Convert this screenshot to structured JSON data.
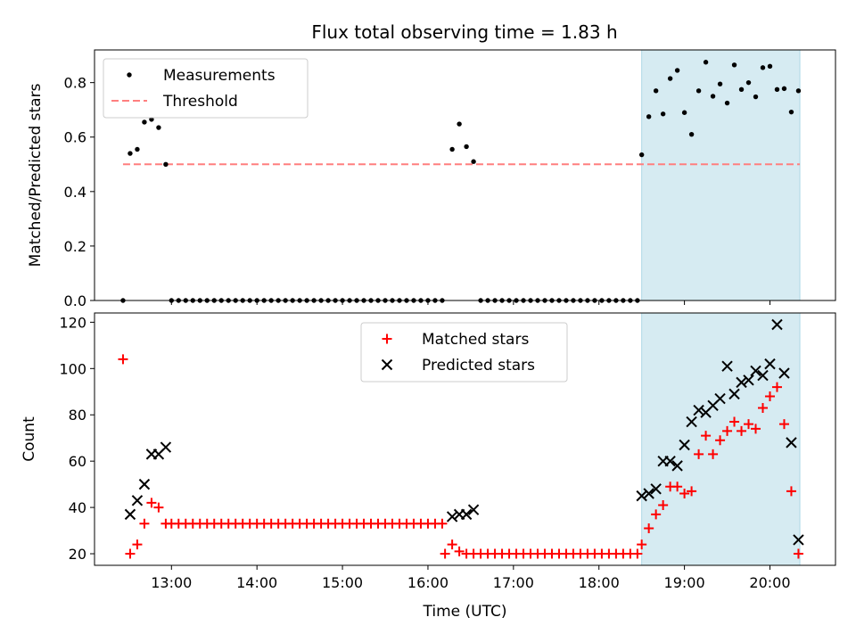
{
  "figure": {
    "title": "Flux total observing time = 1.83 h",
    "xlabel": "Time (UTC)"
  },
  "colors": {
    "highlight": "#add8e6",
    "threshold": "#ff7f7f",
    "matched": "#ff0000",
    "predicted": "#000000",
    "measurement": "#000000"
  },
  "chart_data": [
    {
      "type": "scatter",
      "ylabel": "Matched/Predicted stars",
      "xlim": [
        "12:06",
        "20:46"
      ],
      "ylim": [
        0,
        0.92
      ],
      "yticks": [
        0.0,
        0.2,
        0.4,
        0.6,
        0.8
      ],
      "ytick_labels": [
        "0.0",
        "0.2",
        "0.4",
        "0.6",
        "0.8"
      ],
      "highlight_span": [
        "18:30",
        "20:21"
      ],
      "legend": {
        "location": "upper-left",
        "entries": [
          "Measurements",
          "Threshold"
        ]
      },
      "threshold": {
        "name": "Threshold",
        "value": 0.5,
        "x_range": [
          "12:26",
          "20:21"
        ]
      },
      "series": [
        {
          "name": "Measurements",
          "marker": "dot",
          "points": [
            [
              "12:26",
              0.0
            ],
            [
              "12:31",
              0.54
            ],
            [
              "12:36",
              0.555
            ],
            [
              "12:41",
              0.655
            ],
            [
              "12:46",
              0.665
            ],
            [
              "12:51",
              0.635
            ],
            [
              "12:56",
              0.5
            ],
            [
              "13:00",
              0
            ],
            [
              "13:05",
              0
            ],
            [
              "13:10",
              0
            ],
            [
              "13:15",
              0
            ],
            [
              "13:20",
              0
            ],
            [
              "13:25",
              0
            ],
            [
              "13:30",
              0
            ],
            [
              "13:35",
              0
            ],
            [
              "13:40",
              0
            ],
            [
              "13:45",
              0
            ],
            [
              "13:50",
              0
            ],
            [
              "13:55",
              0
            ],
            [
              "14:00",
              0
            ],
            [
              "14:05",
              0
            ],
            [
              "14:10",
              0
            ],
            [
              "14:15",
              0
            ],
            [
              "14:20",
              0
            ],
            [
              "14:25",
              0
            ],
            [
              "14:30",
              0
            ],
            [
              "14:35",
              0
            ],
            [
              "14:40",
              0
            ],
            [
              "14:45",
              0
            ],
            [
              "14:50",
              0
            ],
            [
              "14:55",
              0
            ],
            [
              "15:00",
              0
            ],
            [
              "15:05",
              0
            ],
            [
              "15:10",
              0
            ],
            [
              "15:15",
              0
            ],
            [
              "15:20",
              0
            ],
            [
              "15:25",
              0
            ],
            [
              "15:30",
              0
            ],
            [
              "15:35",
              0
            ],
            [
              "15:40",
              0
            ],
            [
              "15:45",
              0
            ],
            [
              "15:50",
              0
            ],
            [
              "15:55",
              0
            ],
            [
              "16:00",
              0
            ],
            [
              "16:05",
              0
            ],
            [
              "16:10",
              0
            ],
            [
              "16:17",
              0.555
            ],
            [
              "16:22",
              0.648
            ],
            [
              "16:27",
              0.565
            ],
            [
              "16:32",
              0.51
            ],
            [
              "16:37",
              0
            ],
            [
              "16:42",
              0
            ],
            [
              "16:47",
              0
            ],
            [
              "16:52",
              0
            ],
            [
              "16:57",
              0
            ],
            [
              "17:02",
              0
            ],
            [
              "17:07",
              0
            ],
            [
              "17:12",
              0
            ],
            [
              "17:17",
              0
            ],
            [
              "17:22",
              0
            ],
            [
              "17:27",
              0
            ],
            [
              "17:32",
              0
            ],
            [
              "17:37",
              0
            ],
            [
              "17:42",
              0
            ],
            [
              "17:47",
              0
            ],
            [
              "17:52",
              0
            ],
            [
              "17:57",
              0
            ],
            [
              "18:02",
              0
            ],
            [
              "18:07",
              0
            ],
            [
              "18:12",
              0
            ],
            [
              "18:17",
              0
            ],
            [
              "18:22",
              0
            ],
            [
              "18:27",
              0
            ],
            [
              "18:30",
              0.535
            ],
            [
              "18:35",
              0.675
            ],
            [
              "18:40",
              0.77
            ],
            [
              "18:45",
              0.685
            ],
            [
              "18:50",
              0.815
            ],
            [
              "18:55",
              0.845
            ],
            [
              "19:00",
              0.69
            ],
            [
              "19:05",
              0.61
            ],
            [
              "19:10",
              0.77
            ],
            [
              "19:15",
              0.875
            ],
            [
              "19:20",
              0.75
            ],
            [
              "19:25",
              0.795
            ],
            [
              "19:30",
              0.725
            ],
            [
              "19:35",
              0.865
            ],
            [
              "19:40",
              0.775
            ],
            [
              "19:45",
              0.8
            ],
            [
              "19:50",
              0.748
            ],
            [
              "19:55",
              0.855
            ],
            [
              "20:00",
              0.86
            ],
            [
              "20:05",
              0.775
            ],
            [
              "20:10",
              0.778
            ],
            [
              "20:15",
              0.692
            ],
            [
              "20:20",
              0.77
            ]
          ]
        }
      ]
    },
    {
      "type": "scatter",
      "ylabel": "Count",
      "xlim": [
        "12:06",
        "20:46"
      ],
      "ylim": [
        15,
        124
      ],
      "yticks": [
        20,
        40,
        60,
        80,
        100,
        120
      ],
      "ytick_labels": [
        "20",
        "40",
        "60",
        "80",
        "100",
        "120"
      ],
      "xticks": [
        "13:00",
        "14:00",
        "15:00",
        "16:00",
        "17:00",
        "18:00",
        "19:00",
        "20:00"
      ],
      "xtick_labels": [
        "13:00",
        "14:00",
        "15:00",
        "16:00",
        "17:00",
        "18:00",
        "19:00",
        "20:00"
      ],
      "highlight_span": [
        "18:30",
        "20:21"
      ],
      "legend": {
        "location": "upper-center",
        "entries": [
          "Matched stars",
          "Predicted stars"
        ]
      },
      "series": [
        {
          "name": "Matched stars",
          "marker": "plus",
          "points": [
            [
              "12:26",
              104
            ],
            [
              "12:31",
              20
            ],
            [
              "12:36",
              24
            ],
            [
              "12:41",
              33
            ],
            [
              "12:46",
              42
            ],
            [
              "12:51",
              40
            ],
            [
              "12:56",
              33
            ],
            [
              "13:00",
              33
            ],
            [
              "13:05",
              33
            ],
            [
              "13:10",
              33
            ],
            [
              "13:15",
              33
            ],
            [
              "13:20",
              33
            ],
            [
              "13:25",
              33
            ],
            [
              "13:30",
              33
            ],
            [
              "13:35",
              33
            ],
            [
              "13:40",
              33
            ],
            [
              "13:45",
              33
            ],
            [
              "13:50",
              33
            ],
            [
              "13:55",
              33
            ],
            [
              "14:00",
              33
            ],
            [
              "14:05",
              33
            ],
            [
              "14:10",
              33
            ],
            [
              "14:15",
              33
            ],
            [
              "14:20",
              33
            ],
            [
              "14:25",
              33
            ],
            [
              "14:30",
              33
            ],
            [
              "14:35",
              33
            ],
            [
              "14:40",
              33
            ],
            [
              "14:45",
              33
            ],
            [
              "14:50",
              33
            ],
            [
              "14:55",
              33
            ],
            [
              "15:00",
              33
            ],
            [
              "15:05",
              33
            ],
            [
              "15:10",
              33
            ],
            [
              "15:15",
              33
            ],
            [
              "15:20",
              33
            ],
            [
              "15:25",
              33
            ],
            [
              "15:30",
              33
            ],
            [
              "15:35",
              33
            ],
            [
              "15:40",
              33
            ],
            [
              "15:45",
              33
            ],
            [
              "15:50",
              33
            ],
            [
              "15:55",
              33
            ],
            [
              "16:00",
              33
            ],
            [
              "16:05",
              33
            ],
            [
              "16:10",
              33
            ],
            [
              "16:12",
              20
            ],
            [
              "16:17",
              24
            ],
            [
              "16:22",
              21
            ],
            [
              "16:27",
              20
            ],
            [
              "16:32",
              20
            ],
            [
              "16:37",
              20
            ],
            [
              "16:42",
              20
            ],
            [
              "16:47",
              20
            ],
            [
              "16:52",
              20
            ],
            [
              "16:57",
              20
            ],
            [
              "17:02",
              20
            ],
            [
              "17:07",
              20
            ],
            [
              "17:12",
              20
            ],
            [
              "17:17",
              20
            ],
            [
              "17:22",
              20
            ],
            [
              "17:27",
              20
            ],
            [
              "17:32",
              20
            ],
            [
              "17:37",
              20
            ],
            [
              "17:42",
              20
            ],
            [
              "17:47",
              20
            ],
            [
              "17:52",
              20
            ],
            [
              "17:57",
              20
            ],
            [
              "18:02",
              20
            ],
            [
              "18:07",
              20
            ],
            [
              "18:12",
              20
            ],
            [
              "18:17",
              20
            ],
            [
              "18:22",
              20
            ],
            [
              "18:27",
              20
            ],
            [
              "18:30",
              24
            ],
            [
              "18:35",
              31
            ],
            [
              "18:40",
              37
            ],
            [
              "18:45",
              41
            ],
            [
              "18:50",
              49
            ],
            [
              "18:55",
              49
            ],
            [
              "19:00",
              46
            ],
            [
              "19:05",
              47
            ],
            [
              "19:10",
              63
            ],
            [
              "19:15",
              71
            ],
            [
              "19:20",
              63
            ],
            [
              "19:25",
              69
            ],
            [
              "19:30",
              73
            ],
            [
              "19:35",
              77
            ],
            [
              "19:40",
              73
            ],
            [
              "19:45",
              76
            ],
            [
              "19:50",
              74
            ],
            [
              "19:55",
              83
            ],
            [
              "20:00",
              88
            ],
            [
              "20:05",
              92
            ],
            [
              "20:10",
              76
            ],
            [
              "20:15",
              47
            ],
            [
              "20:20",
              20
            ]
          ]
        },
        {
          "name": "Predicted stars",
          "marker": "x",
          "points": [
            [
              "12:31",
              37
            ],
            [
              "12:36",
              43
            ],
            [
              "12:41",
              50
            ],
            [
              "12:46",
              63
            ],
            [
              "12:51",
              63
            ],
            [
              "12:56",
              66
            ],
            [
              "16:17",
              36
            ],
            [
              "16:22",
              37
            ],
            [
              "16:27",
              37
            ],
            [
              "16:32",
              39
            ],
            [
              "18:30",
              45
            ],
            [
              "18:35",
              46
            ],
            [
              "18:40",
              48
            ],
            [
              "18:45",
              60
            ],
            [
              "18:50",
              60
            ],
            [
              "18:55",
              58
            ],
            [
              "19:00",
              67
            ],
            [
              "19:05",
              77
            ],
            [
              "19:10",
              82
            ],
            [
              "19:15",
              81
            ],
            [
              "19:20",
              84
            ],
            [
              "19:25",
              87
            ],
            [
              "19:30",
              101
            ],
            [
              "19:35",
              89
            ],
            [
              "19:40",
              94
            ],
            [
              "19:45",
              95
            ],
            [
              "19:50",
              99
            ],
            [
              "19:55",
              97
            ],
            [
              "20:00",
              102
            ],
            [
              "20:05",
              119
            ],
            [
              "20:10",
              98
            ],
            [
              "20:15",
              68
            ],
            [
              "20:20",
              26
            ]
          ]
        }
      ]
    }
  ]
}
